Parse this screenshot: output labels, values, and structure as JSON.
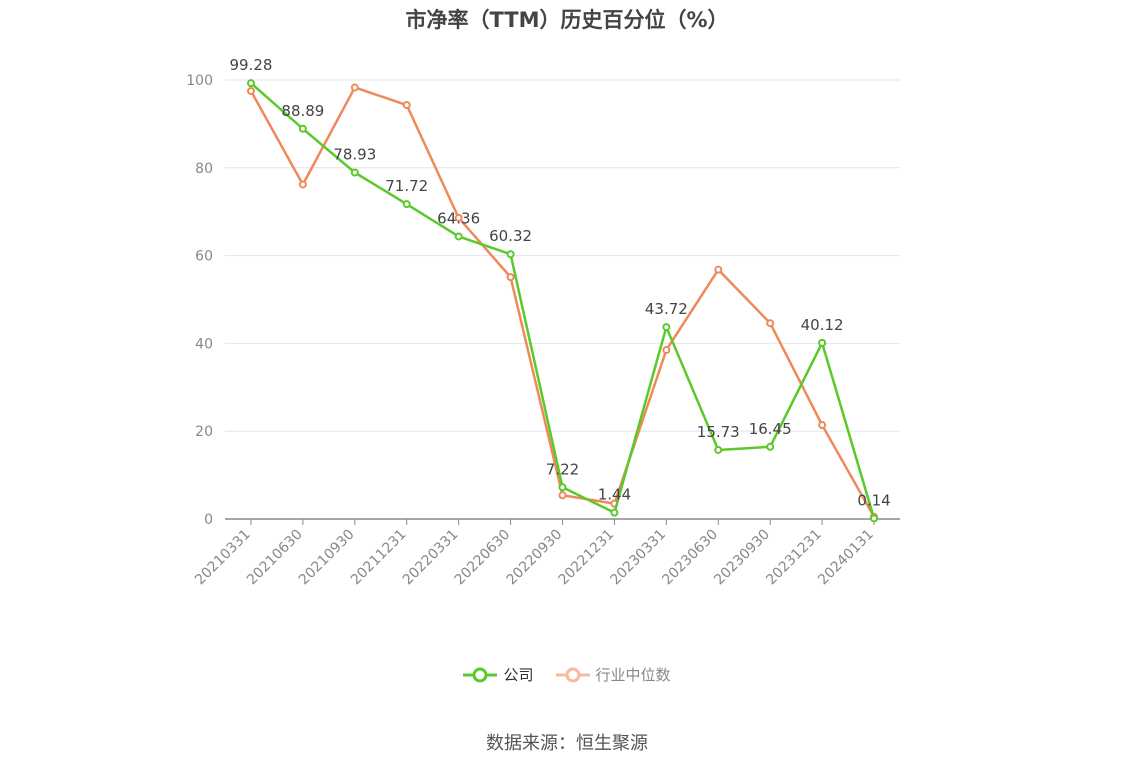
{
  "chart_data": {
    "type": "line",
    "title": "市净率（TTM）历史百分位（%）",
    "categories": [
      "20210331",
      "20210630",
      "20210930",
      "20211231",
      "20220331",
      "20220630",
      "20220930",
      "20221231",
      "20230331",
      "20230630",
      "20230930",
      "20231231",
      "20240131"
    ],
    "series": [
      {
        "name": "公司",
        "color": "#5ac92a",
        "values": [
          99.28,
          88.89,
          78.93,
          71.72,
          64.36,
          60.32,
          7.22,
          1.44,
          43.72,
          15.73,
          16.45,
          40.12,
          0.14
        ],
        "labels": [
          "99.28",
          "88.89",
          "78.93",
          "71.72",
          "64.36",
          "60.32",
          "7.22",
          "1.44",
          "43.72",
          "15.73",
          "16.45",
          "40.12",
          "0.14"
        ]
      },
      {
        "name": "行业中位数",
        "color": "#f0895a",
        "values": [
          97.5,
          76.2,
          98.3,
          94.3,
          68.6,
          55.1,
          5.4,
          3.5,
          38.5,
          56.8,
          44.6,
          21.4,
          0.5
        ]
      }
    ],
    "yticks": [
      "100",
      "80",
      "60",
      "40",
      "20",
      "0"
    ],
    "ylim": [
      0,
      100
    ],
    "grid": true,
    "legend_position": "bottom-center"
  },
  "legend_items": [
    {
      "name": "公司",
      "text_color": "#333333"
    },
    {
      "name": "行业中位数",
      "text_color": "#888888"
    }
  ],
  "source": "数据来源：恒生聚源"
}
